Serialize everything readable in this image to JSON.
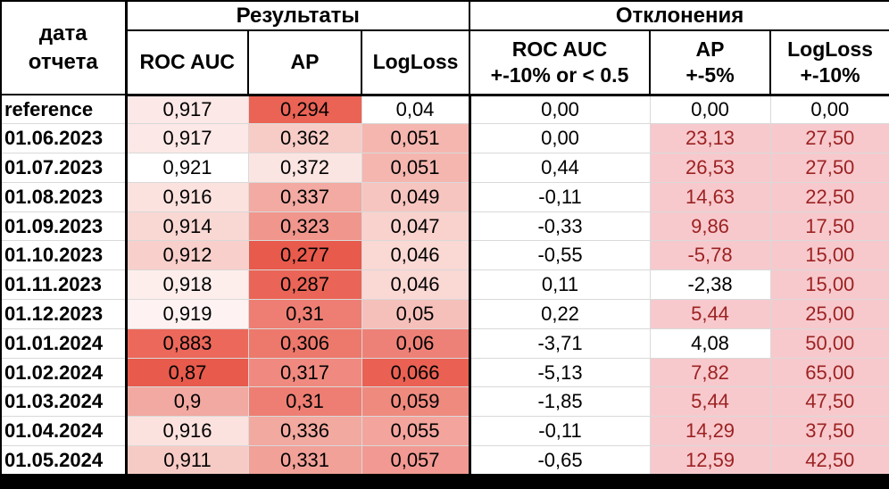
{
  "header": {
    "date_line1": "дата",
    "date_line2": "отчета",
    "results_group": "Результаты",
    "deviations_group": "Отклонения",
    "result_cols": [
      "ROC AUC",
      "AP",
      "LogLoss"
    ],
    "deviation_cols": [
      {
        "line1": "ROC AUC",
        "line2": "+-10% or < 0.5"
      },
      {
        "line1": "AP",
        "line2": "+-5%"
      },
      {
        "line1": "LogLoss",
        "line2": "+-10%"
      }
    ]
  },
  "colors": {
    "alert_bg": "#f7c9cd",
    "alert_text": "#9c2222",
    "grid_line": "#d9d9d9",
    "border": "#000000",
    "heat_scale_low": "#e85a4c",
    "heat_scale_high": "#ffffff"
  },
  "rows": [
    {
      "date": "reference",
      "results": [
        {
          "value": "0,917",
          "bg": "#fce8e6"
        },
        {
          "value": "0,294",
          "bg": "#ea6355"
        },
        {
          "value": "0,04",
          "bg": "#ffffff"
        }
      ],
      "deviations": [
        {
          "value": "0,00",
          "alert": false
        },
        {
          "value": "0,00",
          "alert": false
        },
        {
          "value": "0,00",
          "alert": false
        }
      ]
    },
    {
      "date": "01.06.2023",
      "results": [
        {
          "value": "0,917",
          "bg": "#fce8e6"
        },
        {
          "value": "0,362",
          "bg": "#f7ccc7"
        },
        {
          "value": "0,051",
          "bg": "#f4b6af"
        }
      ],
      "deviations": [
        {
          "value": "0,00",
          "alert": false
        },
        {
          "value": "23,13",
          "alert": true
        },
        {
          "value": "27,50",
          "alert": true
        }
      ]
    },
    {
      "date": "01.07.2023",
      "results": [
        {
          "value": "0,921",
          "bg": "#ffffff"
        },
        {
          "value": "0,372",
          "bg": "#fbe5e3"
        },
        {
          "value": "0,051",
          "bg": "#f4b6af"
        }
      ],
      "deviations": [
        {
          "value": "0,44",
          "alert": false
        },
        {
          "value": "26,53",
          "alert": true
        },
        {
          "value": "27,50",
          "alert": true
        }
      ]
    },
    {
      "date": "01.08.2023",
      "results": [
        {
          "value": "0,916",
          "bg": "#fbe2df"
        },
        {
          "value": "0,337",
          "bg": "#f2aaa2"
        },
        {
          "value": "0,049",
          "bg": "#f7c5bf"
        }
      ],
      "deviations": [
        {
          "value": "-0,11",
          "alert": false
        },
        {
          "value": "14,63",
          "alert": true
        },
        {
          "value": "22,50",
          "alert": true
        }
      ]
    },
    {
      "date": "01.09.2023",
      "results": [
        {
          "value": "0,914",
          "bg": "#f9d8d4"
        },
        {
          "value": "0,323",
          "bg": "#f0968d"
        },
        {
          "value": "0,047",
          "bg": "#f9d2cd"
        }
      ],
      "deviations": [
        {
          "value": "-0,33",
          "alert": false
        },
        {
          "value": "9,86",
          "alert": true
        },
        {
          "value": "17,50",
          "alert": true
        }
      ]
    },
    {
      "date": "01.10.2023",
      "results": [
        {
          "value": "0,912",
          "bg": "#f8cfca"
        },
        {
          "value": "0,277",
          "bg": "#e85a4c"
        },
        {
          "value": "0,046",
          "bg": "#fad8d4"
        }
      ],
      "deviations": [
        {
          "value": "-0,55",
          "alert": false
        },
        {
          "value": "-5,78",
          "alert": true
        },
        {
          "value": "15,00",
          "alert": true
        }
      ]
    },
    {
      "date": "01.11.2023",
      "results": [
        {
          "value": "0,918",
          "bg": "#fdeeec"
        },
        {
          "value": "0,287",
          "bg": "#ea6557"
        },
        {
          "value": "0,046",
          "bg": "#fad8d4"
        }
      ],
      "deviations": [
        {
          "value": "0,11",
          "alert": false
        },
        {
          "value": "-2,38",
          "alert": false
        },
        {
          "value": "15,00",
          "alert": true
        }
      ]
    },
    {
      "date": "01.12.2023",
      "results": [
        {
          "value": "0,919",
          "bg": "#fef3f2"
        },
        {
          "value": "0,31",
          "bg": "#ee7e73"
        },
        {
          "value": "0,05",
          "bg": "#f6c0ba"
        }
      ],
      "deviations": [
        {
          "value": "0,22",
          "alert": false
        },
        {
          "value": "5,44",
          "alert": true
        },
        {
          "value": "25,00",
          "alert": true
        }
      ]
    },
    {
      "date": "01.01.2024",
      "results": [
        {
          "value": "0,883",
          "bg": "#ec685b"
        },
        {
          "value": "0,306",
          "bg": "#ed786c"
        },
        {
          "value": "0,06",
          "bg": "#ee8177"
        }
      ],
      "deviations": [
        {
          "value": "-3,71",
          "alert": false
        },
        {
          "value": "4,08",
          "alert": false
        },
        {
          "value": "50,00",
          "alert": true
        }
      ]
    },
    {
      "date": "01.02.2024",
      "results": [
        {
          "value": "0,87",
          "bg": "#e85a4c"
        },
        {
          "value": "0,317",
          "bg": "#f08a80"
        },
        {
          "value": "0,066",
          "bg": "#ea6153"
        }
      ],
      "deviations": [
        {
          "value": "-5,13",
          "alert": false
        },
        {
          "value": "7,82",
          "alert": true
        },
        {
          "value": "65,00",
          "alert": true
        }
      ]
    },
    {
      "date": "01.03.2024",
      "results": [
        {
          "value": "0,9",
          "bg": "#f2a9a1"
        },
        {
          "value": "0,31",
          "bg": "#ee7e73"
        },
        {
          "value": "0,059",
          "bg": "#ef8a7f"
        }
      ],
      "deviations": [
        {
          "value": "-1,85",
          "alert": false
        },
        {
          "value": "5,44",
          "alert": true
        },
        {
          "value": "47,50",
          "alert": true
        }
      ]
    },
    {
      "date": "01.04.2024",
      "results": [
        {
          "value": "0,916",
          "bg": "#fbe2df"
        },
        {
          "value": "0,336",
          "bg": "#f2a9a0"
        },
        {
          "value": "0,055",
          "bg": "#f3a59d"
        }
      ],
      "deviations": [
        {
          "value": "-0,11",
          "alert": false
        },
        {
          "value": "14,29",
          "alert": true
        },
        {
          "value": "37,50",
          "alert": true
        }
      ]
    },
    {
      "date": "01.05.2024",
      "results": [
        {
          "value": "0,911",
          "bg": "#f7cbc5"
        },
        {
          "value": "0,331",
          "bg": "#f1a198"
        },
        {
          "value": "0,057",
          "bg": "#f19992"
        }
      ],
      "deviations": [
        {
          "value": "-0,65",
          "alert": false
        },
        {
          "value": "12,59",
          "alert": true
        },
        {
          "value": "42,50",
          "alert": true
        }
      ]
    }
  ]
}
